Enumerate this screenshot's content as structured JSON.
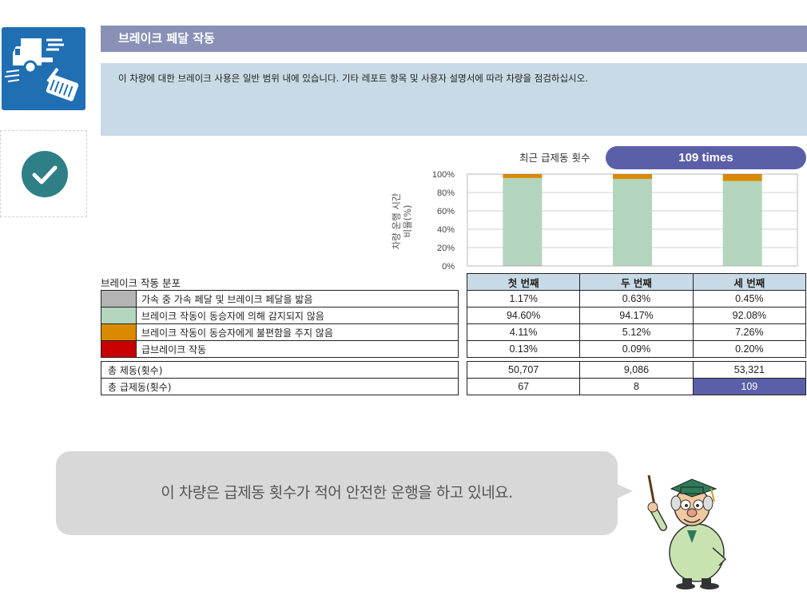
{
  "sidebar": {
    "icon": "brake-pedal-truck-icon",
    "check_icon": "checkmark-icon",
    "icon_color": "#1f6fb2",
    "check_color": "#2e7f86"
  },
  "header": {
    "title": "브레이크 페달 작동"
  },
  "description": "이 차량에 대한 브레이크 사용은 일반 범위 내에 있습니다. 기타 레포트 항목 및 사용자 설명서에 따라 차량을 점검하십시오.",
  "recent": {
    "label": "최근 급제동 횟수",
    "value": "109 times"
  },
  "chart_data": {
    "type": "bar",
    "stacked": true,
    "categories": [
      "첫 번째",
      "두 번째",
      "세 번째"
    ],
    "series": [
      {
        "name": "가속 중 가속 페달 및 브레이크 페달을 밟음",
        "values": [
          1.17,
          0.63,
          0.45
        ],
        "color": "#b4b4b4"
      },
      {
        "name": "브레이크 작동이 동승자에 의해 감지되지 않음",
        "values": [
          94.6,
          94.17,
          92.08
        ],
        "color": "#b3d5bd"
      },
      {
        "name": "브레이크 작동이 동승자에게 불편함을 주지 않음",
        "values": [
          4.11,
          5.12,
          7.26
        ],
        "color": "#d98a00"
      },
      {
        "name": "급브레이크 작동",
        "values": [
          0.13,
          0.09,
          0.2
        ],
        "color": "#c80000"
      }
    ],
    "ylabel_lines": [
      "차량 운행 시간",
      "비율(%)"
    ],
    "yticks": [
      "0%",
      "20%",
      "40%",
      "60%",
      "80%",
      "100%"
    ],
    "ylim": [
      0,
      100
    ],
    "grid": true
  },
  "distribution": {
    "title": "브레이크 작동 분포",
    "columns": [
      "첫 번째",
      "두 번째",
      "세 번째"
    ],
    "rows": [
      {
        "label": "가속 중 가속 페달 및 브레이크 페달을 밟음",
        "color": "#b4b4b4",
        "values": [
          "1.17%",
          "0.63%",
          "0.45%"
        ]
      },
      {
        "label": "브레이크 작동이 동승자에 의해 감지되지 않음",
        "color": "#b3d5bd",
        "values": [
          "94.60%",
          "94.17%",
          "92.08%"
        ]
      },
      {
        "label": "브레이크 작동이 동승자에게 불편함을 주지 않음",
        "color": "#d98a00",
        "values": [
          "4.11%",
          "5.12%",
          "7.26%"
        ]
      },
      {
        "label": "급브레이크 작동",
        "color": "#c80000",
        "values": [
          "0.13%",
          "0.09%",
          "0.20%"
        ]
      }
    ]
  },
  "totals": [
    {
      "label": "총 제동(횟수)",
      "values": [
        "50,707",
        "9,086",
        "53,321"
      ]
    },
    {
      "label": "총 급제동(횟수)",
      "values": [
        "67",
        "8",
        "109"
      ]
    }
  ],
  "bubble": {
    "text": "이 차량은 급제동 횟수가 적어 안전한 운행을 하고 있네요."
  },
  "mascot": {
    "icon": "professor-mascot-icon"
  }
}
